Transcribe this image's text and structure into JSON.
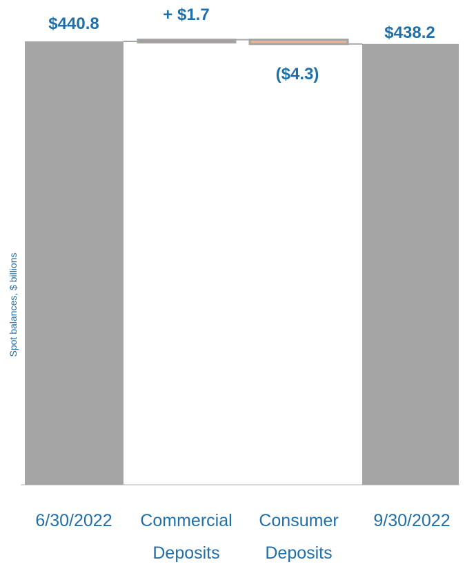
{
  "chart_data": {
    "type": "waterfall",
    "ylabel": "Spot balances, $ billions",
    "categories": [
      [
        "6/30/2022"
      ],
      [
        "Commercial",
        "Deposits"
      ],
      [
        "Consumer",
        "Deposits"
      ],
      [
        "9/30/2022"
      ]
    ],
    "bars": [
      {
        "kind": "total",
        "start": 0,
        "end": 440.8,
        "label": "$440.8"
      },
      {
        "kind": "increase",
        "start": 440.8,
        "end": 442.5,
        "label": "+ $1.7"
      },
      {
        "kind": "decrease",
        "start": 442.5,
        "end": 438.2,
        "label": "($4.3)"
      },
      {
        "kind": "total",
        "start": 0,
        "end": 438.2,
        "label": "$438.2"
      }
    ],
    "colors": {
      "total": "#a5a5a5",
      "increase": "#ed7d31",
      "decrease": "#f4b183",
      "outline": "#a5a5a5",
      "label": "#1f6fa8",
      "axis": "#d9d9d9"
    }
  }
}
